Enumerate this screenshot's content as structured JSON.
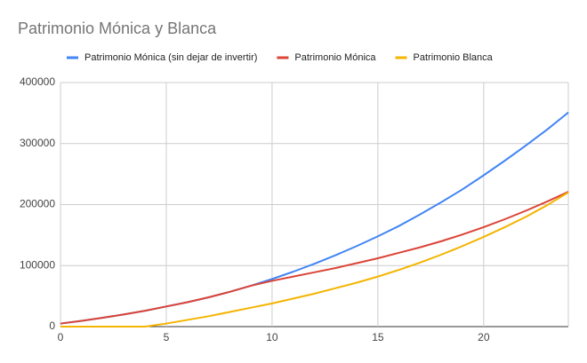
{
  "chart_data": {
    "type": "line",
    "title": "Patrimonio Mónica y Blanca",
    "x": [
      0,
      1,
      2,
      3,
      4,
      5,
      6,
      7,
      8,
      9,
      10,
      11,
      12,
      13,
      14,
      15,
      16,
      17,
      18,
      19,
      20,
      21,
      22,
      23,
      24
    ],
    "series": [
      {
        "name": "Patrimonio Mónica (sin dejar de invertir)",
        "color": "#4285f4",
        "values": [
          5000,
          9500,
          14500,
          20000,
          26000,
          33000,
          40000,
          48000,
          57000,
          67000,
          78000,
          90000,
          103000,
          117000,
          132000,
          148000,
          165000,
          184000,
          204000,
          225000,
          248000,
          272000,
          297000,
          323000,
          351000
        ]
      },
      {
        "name": "Patrimonio Mónica",
        "color": "#db4437",
        "values": [
          5000,
          9500,
          14500,
          20000,
          26000,
          33000,
          40000,
          48000,
          57000,
          67000,
          75000,
          82000,
          89000,
          96000,
          104000,
          112000,
          121000,
          130000,
          140000,
          151000,
          163000,
          176000,
          190000,
          205000,
          221000
        ]
      },
      {
        "name": "Patrimonio Blanca",
        "color": "#f4b400",
        "values": [
          0,
          0,
          0,
          0,
          0,
          5000,
          11000,
          17000,
          24000,
          31000,
          38000,
          46000,
          54000,
          63000,
          72000,
          82000,
          93000,
          105000,
          118000,
          132000,
          147000,
          163000,
          180000,
          199000,
          220000
        ]
      }
    ],
    "xlim": [
      0,
      24
    ],
    "xticks": [
      0,
      5,
      10,
      15,
      20
    ],
    "ylim": [
      0,
      400000
    ],
    "yticks": [
      0,
      100000,
      200000,
      300000,
      400000
    ],
    "grid": true,
    "legend": "top"
  }
}
